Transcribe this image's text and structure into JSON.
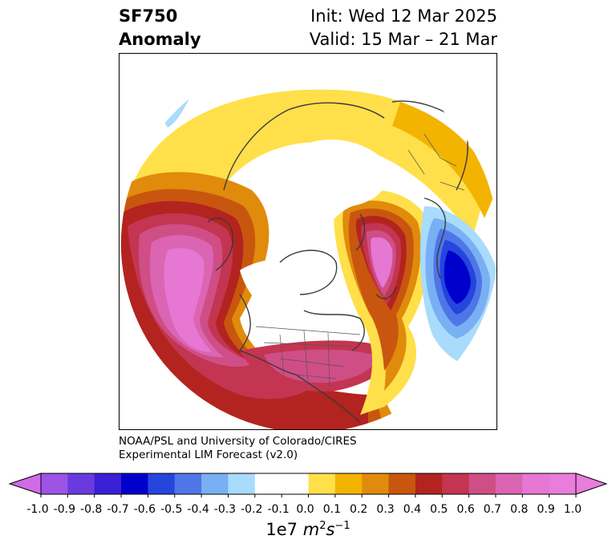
{
  "title": {
    "left_line1": "SF750",
    "left_line2": "Anomaly",
    "right_line1": "Init: Wed 12 Mar 2025",
    "right_line2": "Valid: 15 Mar – 21 Mar"
  },
  "credit": {
    "line1": "NOAA/PSL and University of Colorado/CIRES",
    "line2": "Experimental LIM Forecast (v2.0)"
  },
  "colorbar": {
    "unit_base": "1e7 ",
    "unit_sym": "m",
    "unit_sup1": "2",
    "unit_sym2": "s",
    "unit_sup2": "−1",
    "ticks": [
      "-1.0",
      "-0.9",
      "-0.8",
      "-0.7",
      "-0.6",
      "-0.5",
      "-0.4",
      "-0.3",
      "-0.2",
      "-0.1",
      "0.0",
      "0.1",
      "0.2",
      "0.3",
      "0.4",
      "0.5",
      "0.6",
      "0.7",
      "0.8",
      "0.9",
      "1.0"
    ],
    "colors": [
      "#9c53e6",
      "#6a3ae0",
      "#3a1fd4",
      "#0000cd",
      "#2545dd",
      "#4f76e8",
      "#79b0f4",
      "#a9dbfd",
      "#ffffff",
      "#ffffff",
      "#ffe04a",
      "#f2b400",
      "#e08b0c",
      "#c9560e",
      "#b32320",
      "#c33550",
      "#cf4e86",
      "#db65b3",
      "#e677d3",
      "#e87ddc"
    ],
    "extend_low_color": "#d06be8",
    "extend_high_color": "#e87ddc"
  },
  "anomaly_features": [
    {
      "name": "north-pacific-positive",
      "peak": 1.0
    },
    {
      "name": "hudson-bay-positive",
      "peak": 0.9
    },
    {
      "name": "eastern-us-positive",
      "peak": 0.7
    },
    {
      "name": "east-atlantic-negative",
      "peak": -0.6
    }
  ]
}
